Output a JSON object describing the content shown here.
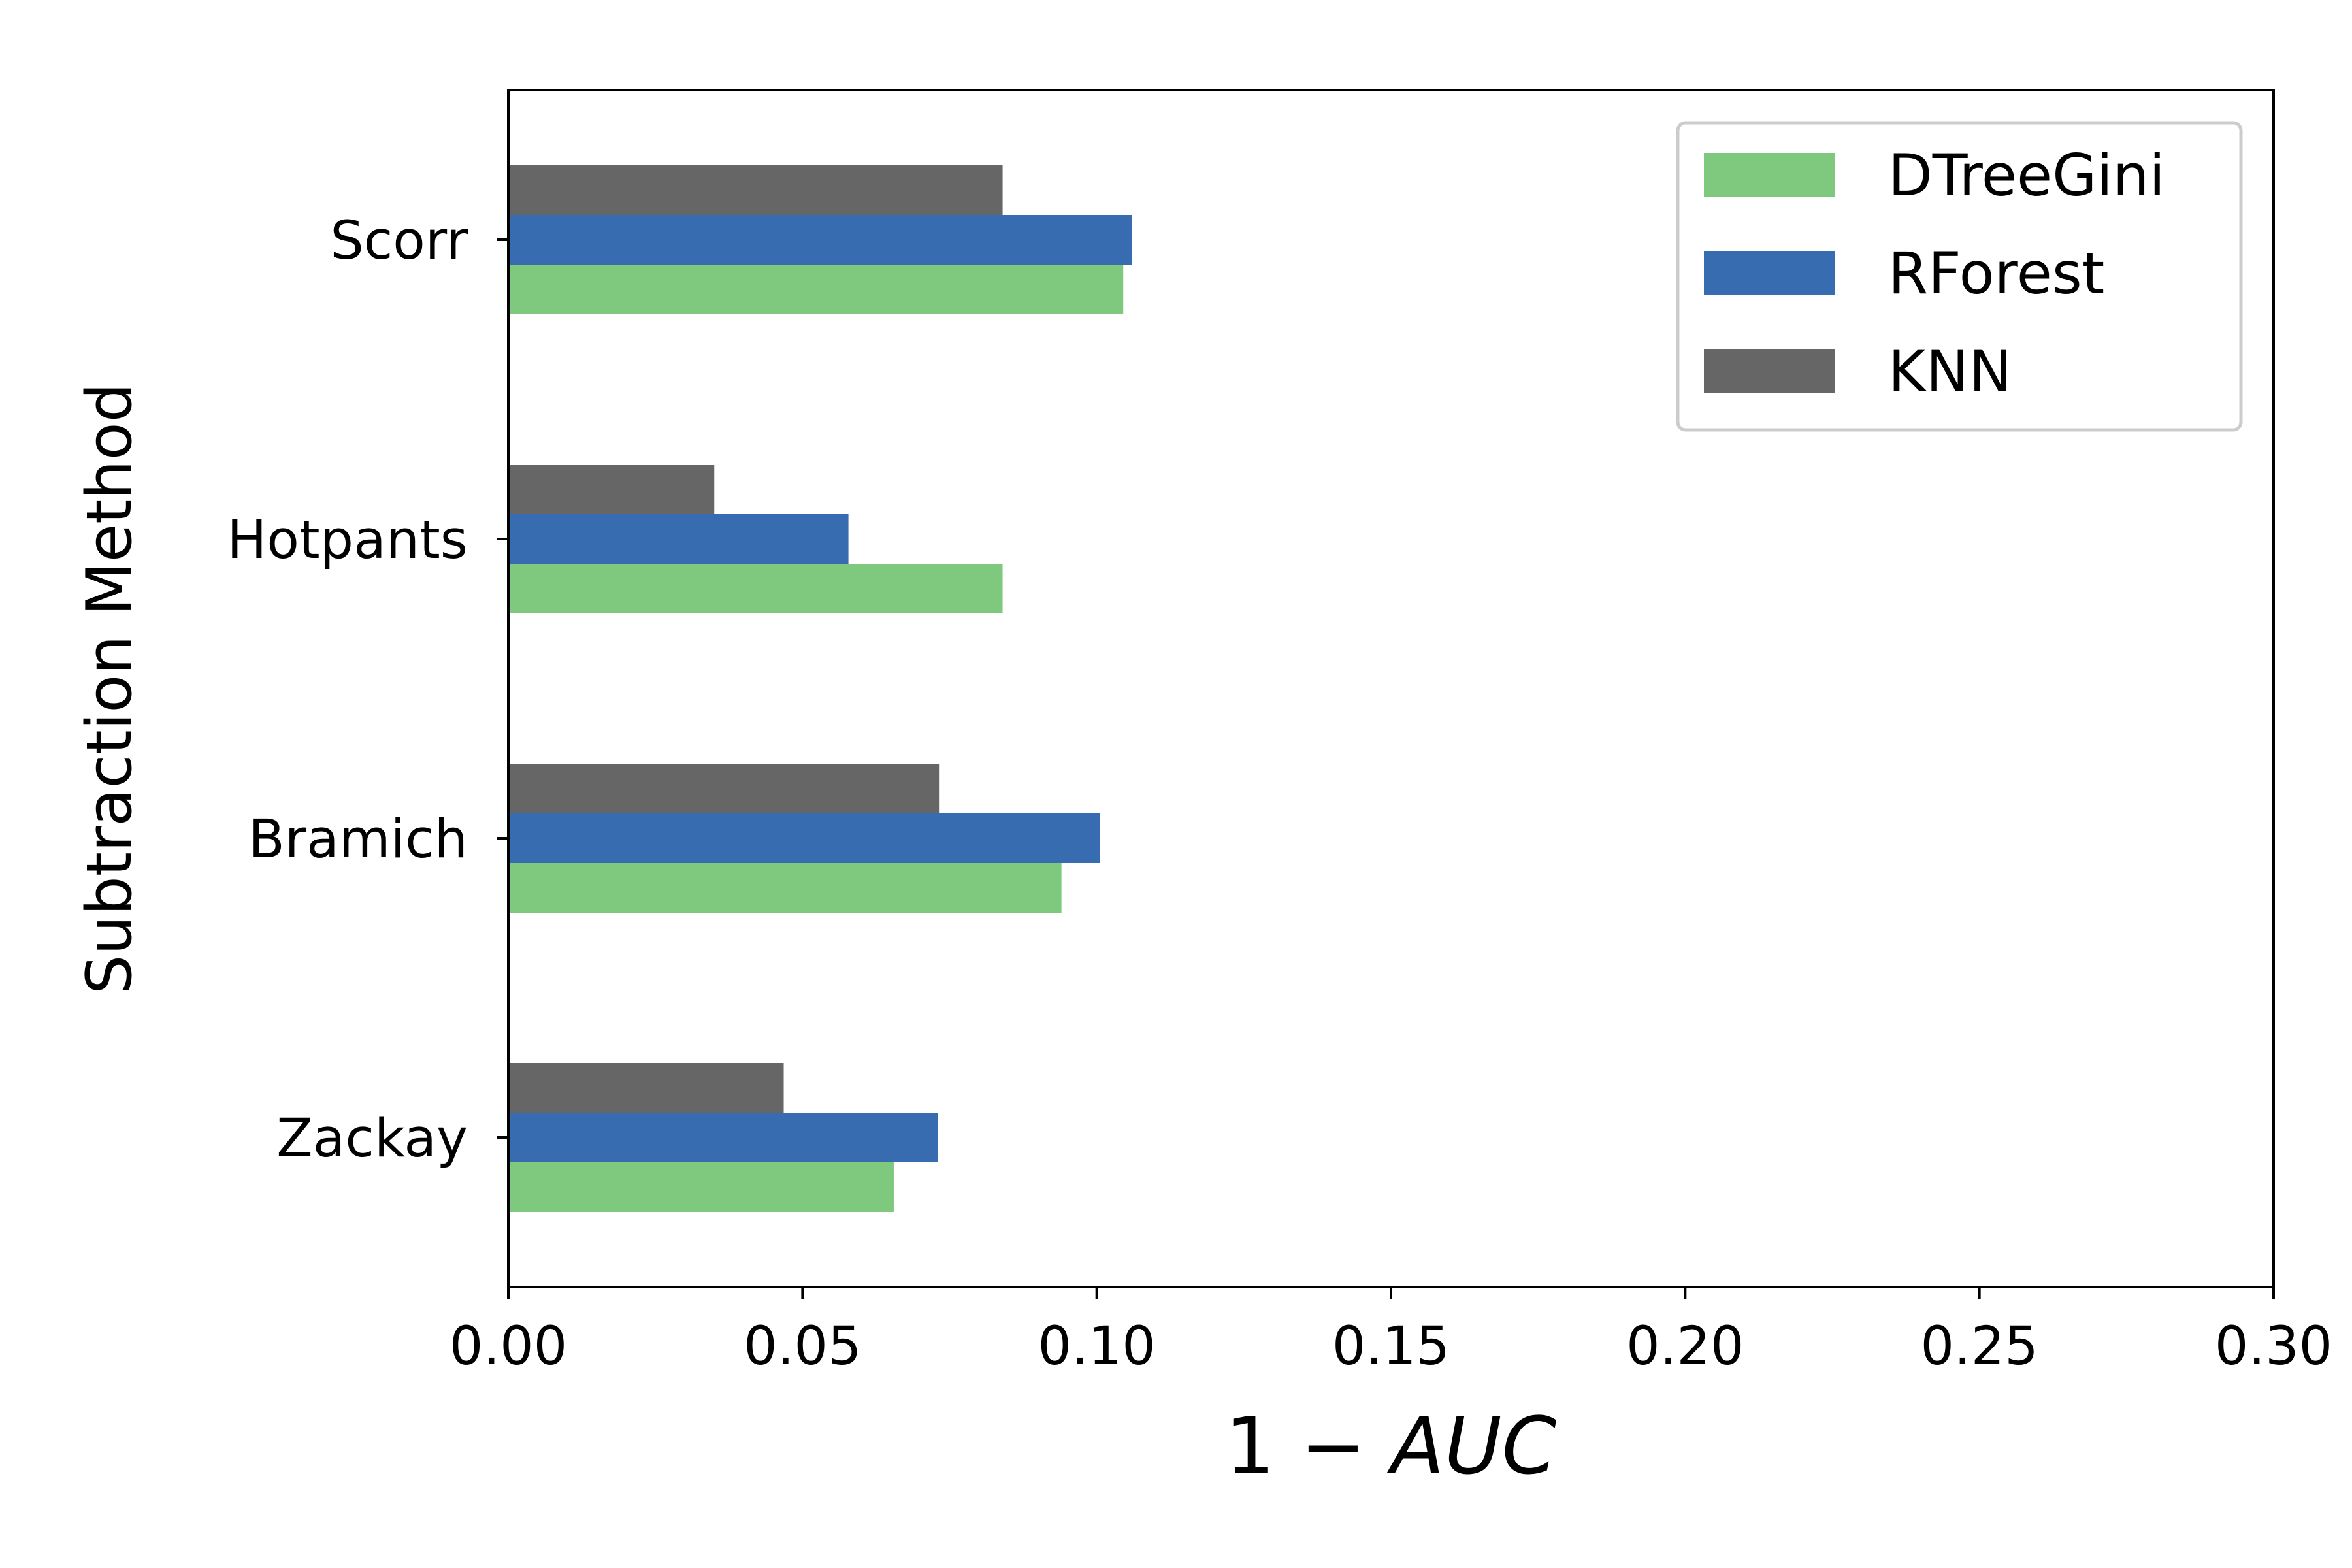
{
  "chart_data": {
    "type": "bar",
    "orientation": "horizontal",
    "categories": [
      "Zackay",
      "Bramich",
      "Hotpants",
      "Scorr"
    ],
    "series": [
      {
        "name": "DTreeGini",
        "color": "#7fc97f",
        "values": [
          0.0655,
          0.094,
          0.084,
          0.1045
        ]
      },
      {
        "name": "RForest",
        "color": "#386cb0",
        "values": [
          0.073,
          0.1005,
          0.0578,
          0.106
        ]
      },
      {
        "name": "KNN",
        "color": "#666666",
        "values": [
          0.0468,
          0.0733,
          0.035,
          0.084
        ]
      }
    ],
    "xlabel_plain": "1 − ",
    "xlabel_italic": "AUC",
    "ylabel": "Subtraction Method",
    "xlim": [
      0,
      0.3
    ],
    "xticks": [
      "0.00",
      "0.05",
      "0.10",
      "0.15",
      "0.20",
      "0.25",
      "0.30"
    ],
    "legend_position": "top-right",
    "grid": false
  }
}
